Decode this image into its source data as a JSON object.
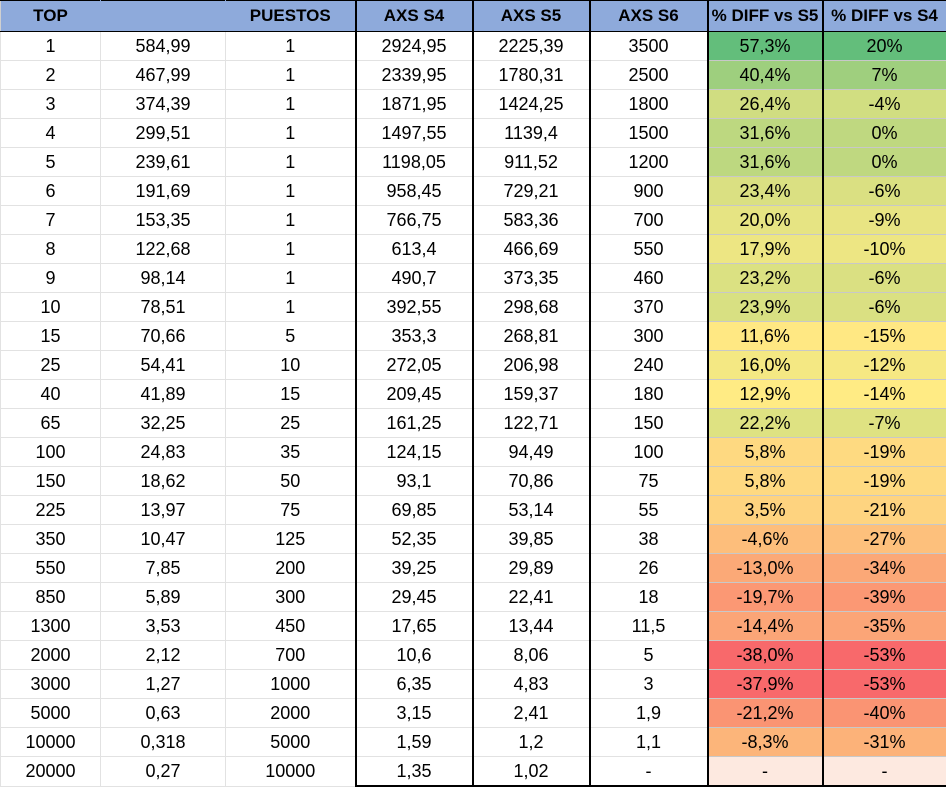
{
  "headers": [
    "TOP",
    "",
    "PUESTOS",
    "AXS S4",
    "AXS S5",
    "AXS S6",
    "% DIFF vs S5",
    "% DIFF vs S4"
  ],
  "colors": {
    "header_bg": "#8eaadb",
    "scale_green": "#63be7b",
    "scale_yellow": "#ffeb84",
    "scale_red": "#f8696b",
    "blank_cell": "#fde9e0"
  },
  "rows": [
    {
      "cells": [
        "1",
        "584,99",
        "1",
        "2924,95",
        "2225,39",
        "3500",
        "57,3%",
        "20%"
      ],
      "diff_s5": 57.3,
      "diff_s4": 20
    },
    {
      "cells": [
        "2",
        "467,99",
        "1",
        "2339,95",
        "1780,31",
        "2500",
        "40,4%",
        "7%"
      ],
      "diff_s5": 40.4,
      "diff_s4": 7
    },
    {
      "cells": [
        "3",
        "374,39",
        "1",
        "1871,95",
        "1424,25",
        "1800",
        "26,4%",
        "-4%"
      ],
      "diff_s5": 26.4,
      "diff_s4": -4
    },
    {
      "cells": [
        "4",
        "299,51",
        "1",
        "1497,55",
        "1139,4",
        "1500",
        "31,6%",
        "0%"
      ],
      "diff_s5": 31.6,
      "diff_s4": 0
    },
    {
      "cells": [
        "5",
        "239,61",
        "1",
        "1198,05",
        "911,52",
        "1200",
        "31,6%",
        "0%"
      ],
      "diff_s5": 31.6,
      "diff_s4": 0
    },
    {
      "cells": [
        "6",
        "191,69",
        "1",
        "958,45",
        "729,21",
        "900",
        "23,4%",
        "-6%"
      ],
      "diff_s5": 23.4,
      "diff_s4": -6
    },
    {
      "cells": [
        "7",
        "153,35",
        "1",
        "766,75",
        "583,36",
        "700",
        "20,0%",
        "-9%"
      ],
      "diff_s5": 20.0,
      "diff_s4": -9
    },
    {
      "cells": [
        "8",
        "122,68",
        "1",
        "613,4",
        "466,69",
        "550",
        "17,9%",
        "-10%"
      ],
      "diff_s5": 17.9,
      "diff_s4": -10
    },
    {
      "cells": [
        "9",
        "98,14",
        "1",
        "490,7",
        "373,35",
        "460",
        "23,2%",
        "-6%"
      ],
      "diff_s5": 23.2,
      "diff_s4": -6
    },
    {
      "cells": [
        "10",
        "78,51",
        "1",
        "392,55",
        "298,68",
        "370",
        "23,9%",
        "-6%"
      ],
      "diff_s5": 23.9,
      "diff_s4": -6
    },
    {
      "cells": [
        "15",
        "70,66",
        "5",
        "353,3",
        "268,81",
        "300",
        "11,6%",
        "-15%"
      ],
      "diff_s5": 11.6,
      "diff_s4": -15
    },
    {
      "cells": [
        "25",
        "54,41",
        "10",
        "272,05",
        "206,98",
        "240",
        "16,0%",
        "-12%"
      ],
      "diff_s5": 16.0,
      "diff_s4": -12
    },
    {
      "cells": [
        "40",
        "41,89",
        "15",
        "209,45",
        "159,37",
        "180",
        "12,9%",
        "-14%"
      ],
      "diff_s5": 12.9,
      "diff_s4": -14
    },
    {
      "cells": [
        "65",
        "32,25",
        "25",
        "161,25",
        "122,71",
        "150",
        "22,2%",
        "-7%"
      ],
      "diff_s5": 22.2,
      "diff_s4": -7
    },
    {
      "cells": [
        "100",
        "24,83",
        "35",
        "124,15",
        "94,49",
        "100",
        "5,8%",
        "-19%"
      ],
      "diff_s5": 5.8,
      "diff_s4": -19
    },
    {
      "cells": [
        "150",
        "18,62",
        "50",
        "93,1",
        "70,86",
        "75",
        "5,8%",
        "-19%"
      ],
      "diff_s5": 5.8,
      "diff_s4": -19
    },
    {
      "cells": [
        "225",
        "13,97",
        "75",
        "69,85",
        "53,14",
        "55",
        "3,5%",
        "-21%"
      ],
      "diff_s5": 3.5,
      "diff_s4": -21
    },
    {
      "cells": [
        "350",
        "10,47",
        "125",
        "52,35",
        "39,85",
        "38",
        "-4,6%",
        "-27%"
      ],
      "diff_s5": -4.6,
      "diff_s4": -27
    },
    {
      "cells": [
        "550",
        "7,85",
        "200",
        "39,25",
        "29,89",
        "26",
        "-13,0%",
        "-34%"
      ],
      "diff_s5": -13.0,
      "diff_s4": -34
    },
    {
      "cells": [
        "850",
        "5,89",
        "300",
        "29,45",
        "22,41",
        "18",
        "-19,7%",
        "-39%"
      ],
      "diff_s5": -19.7,
      "diff_s4": -39
    },
    {
      "cells": [
        "1300",
        "3,53",
        "450",
        "17,65",
        "13,44",
        "11,5",
        "-14,4%",
        "-35%"
      ],
      "diff_s5": -14.4,
      "diff_s4": -35
    },
    {
      "cells": [
        "2000",
        "2,12",
        "700",
        "10,6",
        "8,06",
        "5",
        "-38,0%",
        "-53%"
      ],
      "diff_s5": -38.0,
      "diff_s4": -53
    },
    {
      "cells": [
        "3000",
        "1,27",
        "1000",
        "6,35",
        "4,83",
        "3",
        "-37,9%",
        "-53%"
      ],
      "diff_s5": -37.9,
      "diff_s4": -53
    },
    {
      "cells": [
        "5000",
        "0,63",
        "2000",
        "3,15",
        "2,41",
        "1,9",
        "-21,2%",
        "-40%"
      ],
      "diff_s5": -21.2,
      "diff_s4": -40
    },
    {
      "cells": [
        "10000",
        "0,318",
        "5000",
        "1,59",
        "1,2",
        "1,1",
        "-8,3%",
        "-31%"
      ],
      "diff_s5": -8.3,
      "diff_s4": -31
    },
    {
      "cells": [
        "20000",
        "0,27",
        "10000",
        "1,35",
        "1,02",
        "-",
        "-",
        "-"
      ],
      "diff_s5": null,
      "diff_s4": null
    }
  ]
}
